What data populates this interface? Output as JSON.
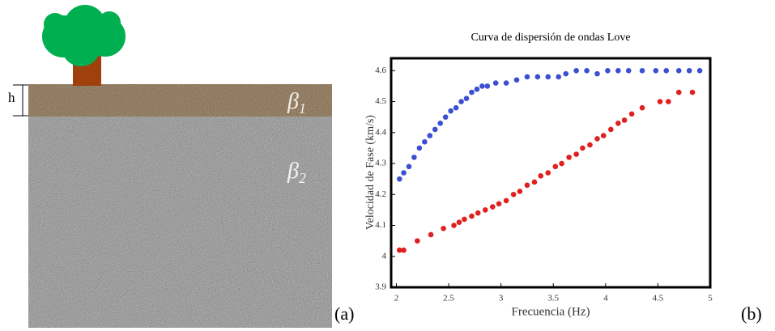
{
  "panel_a": {
    "thickness_label": "h",
    "layer_1": {
      "symbol": "β",
      "subscript": "1"
    },
    "layer_2": {
      "symbol": "β",
      "subscript": "2"
    },
    "panel_label": "(a)"
  },
  "panel_b_label": "(b)",
  "chart_data": {
    "type": "scatter",
    "title": "Curva de dispersión de ondas Love",
    "x_label": "Frecuencia (Hz)",
    "y_label": "Velocidad de Fase (km/s)",
    "xlim": [
      1.95,
      5
    ],
    "xticks": [
      2,
      2.5,
      3,
      3.5,
      4,
      4.5,
      5
    ],
    "ylim": [
      3.9,
      4.64
    ],
    "yticks": [
      3.9,
      4,
      4.1,
      4.2,
      4.3,
      4.4,
      4.5,
      4.6
    ],
    "series": [
      {
        "color": "#3b4fd0",
        "x": [
          2.03,
          2.07,
          2.12,
          2.17,
          2.22,
          2.27,
          2.32,
          2.37,
          2.42,
          2.47,
          2.52,
          2.57,
          2.62,
          2.67,
          2.72,
          2.77,
          2.82,
          2.87,
          2.95,
          3.05,
          3.15,
          3.25,
          3.35,
          3.45,
          3.55,
          3.62,
          3.72,
          3.82,
          3.92,
          4.02,
          4.12,
          4.22,
          4.35,
          4.48,
          4.58,
          4.7,
          4.8,
          4.9
        ],
        "values": [
          4.25,
          4.27,
          4.29,
          4.32,
          4.35,
          4.37,
          4.39,
          4.41,
          4.43,
          4.45,
          4.47,
          4.48,
          4.5,
          4.51,
          4.53,
          4.54,
          4.55,
          4.55,
          4.56,
          4.56,
          4.57,
          4.58,
          4.58,
          4.58,
          4.58,
          4.59,
          4.6,
          4.6,
          4.59,
          4.6,
          4.6,
          4.6,
          4.6,
          4.6,
          4.6,
          4.6,
          4.6,
          4.6
        ]
      },
      {
        "color": "#e02020",
        "x": [
          2.03,
          2.07,
          2.2,
          2.33,
          2.45,
          2.55,
          2.6,
          2.65,
          2.72,
          2.78,
          2.85,
          2.92,
          2.98,
          3.05,
          3.12,
          3.18,
          3.25,
          3.32,
          3.38,
          3.45,
          3.52,
          3.58,
          3.65,
          3.72,
          3.78,
          3.85,
          3.92,
          3.98,
          4.05,
          4.12,
          4.18,
          4.25,
          4.35,
          4.52,
          4.6,
          4.7,
          4.83
        ],
        "values": [
          4.02,
          4.02,
          4.05,
          4.07,
          4.09,
          4.1,
          4.11,
          4.12,
          4.13,
          4.14,
          4.15,
          4.16,
          4.17,
          4.18,
          4.2,
          4.21,
          4.23,
          4.24,
          4.26,
          4.27,
          4.29,
          4.3,
          4.32,
          4.33,
          4.35,
          4.36,
          4.38,
          4.39,
          4.41,
          4.43,
          4.44,
          4.46,
          4.48,
          4.5,
          4.5,
          4.53,
          4.53
        ]
      }
    ]
  }
}
